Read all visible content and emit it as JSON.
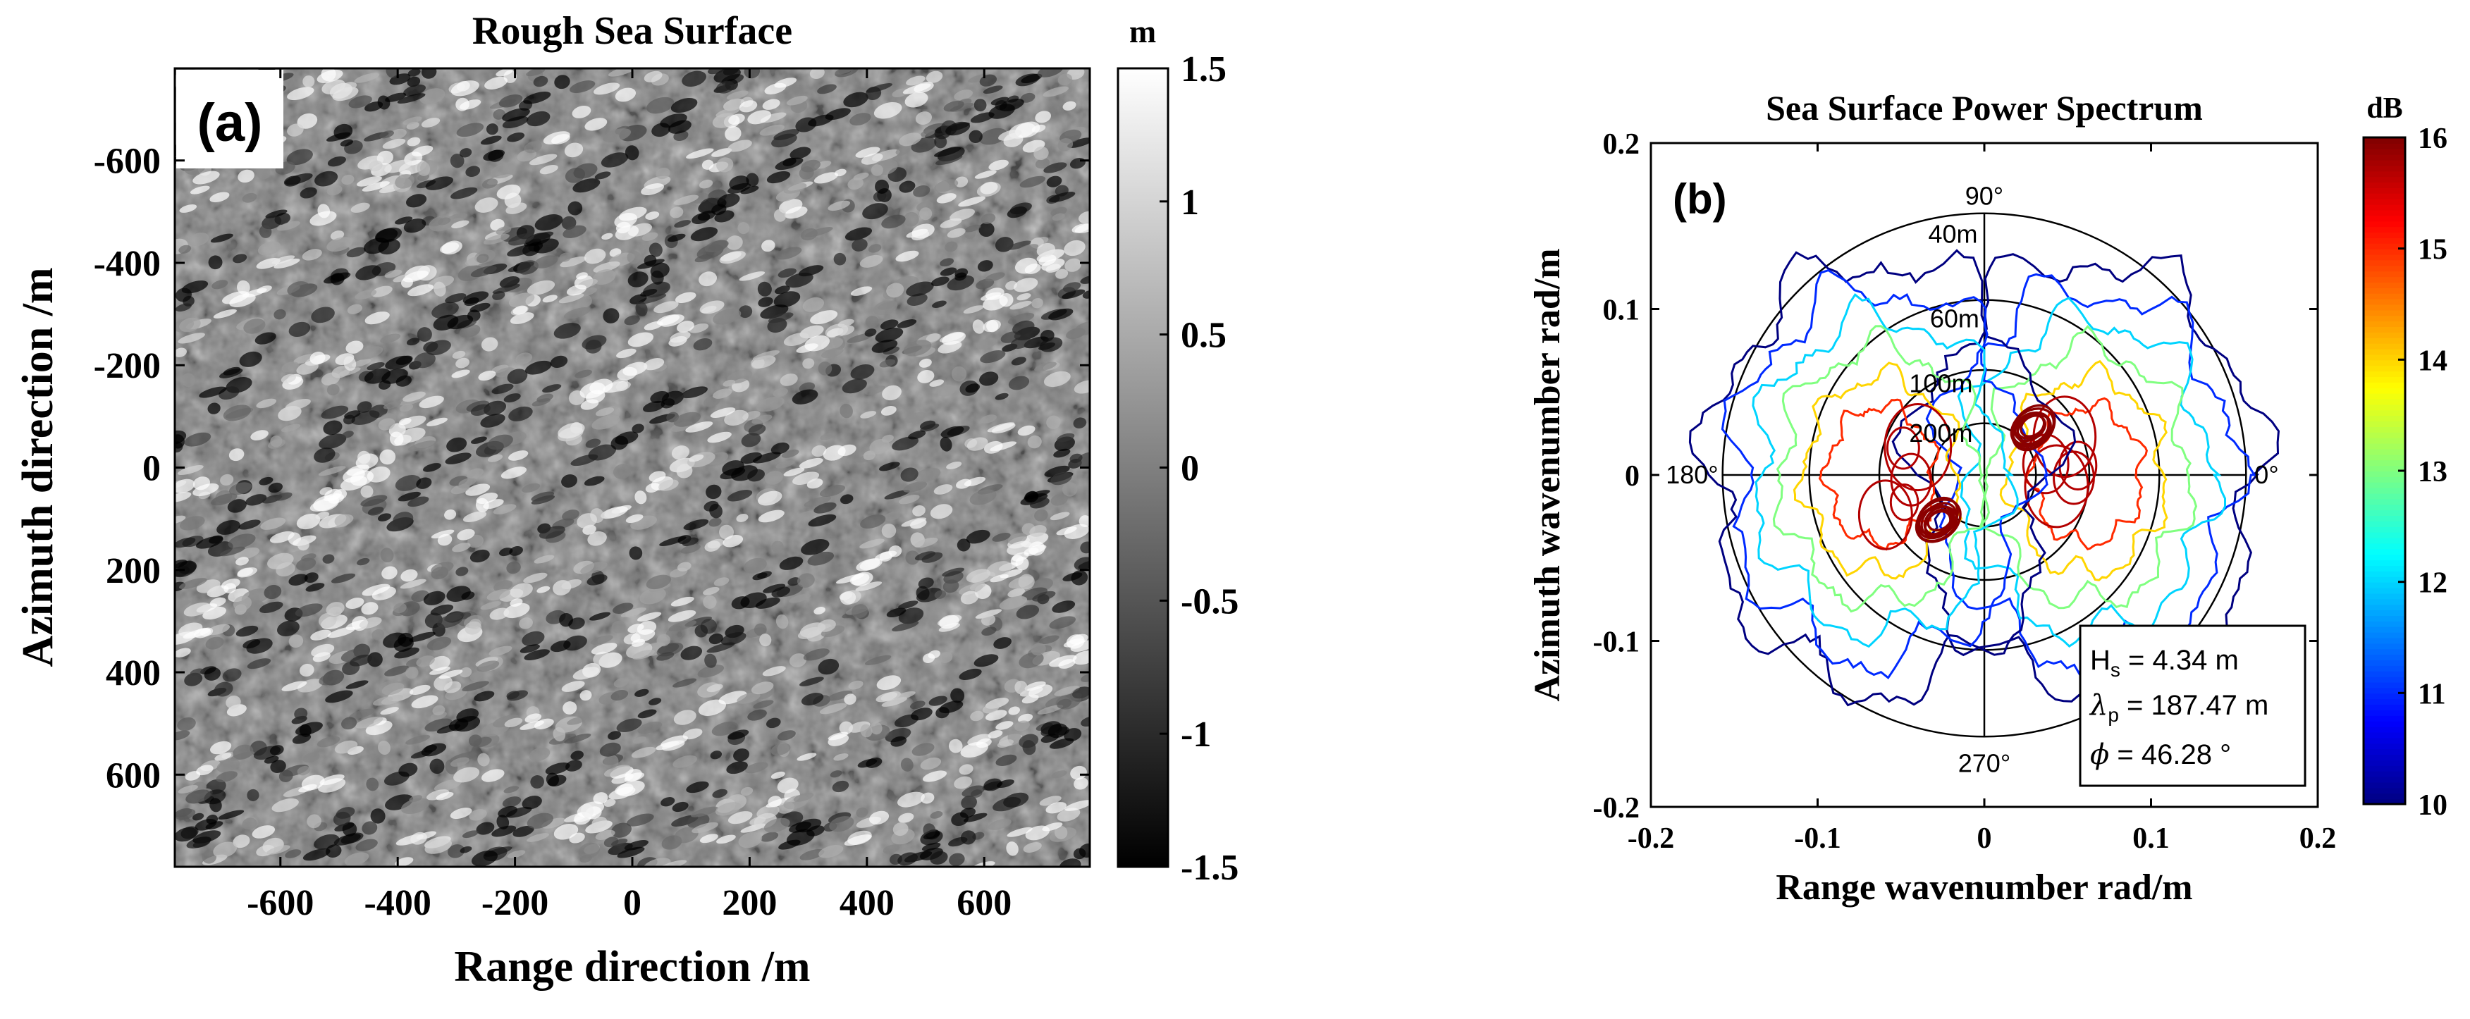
{
  "chart_data": [
    {
      "type": "heatmap",
      "title": "Rough Sea Surface",
      "panel_label": "(a)",
      "xlabel": "Range direction /m",
      "ylabel": "Azimuth direction /m",
      "xlim": [
        -780,
        780
      ],
      "ylim": [
        780,
        -780
      ],
      "xticks": [
        -600,
        -400,
        -200,
        0,
        200,
        400,
        600
      ],
      "xtick_labels": [
        "-600",
        "-400",
        "-200",
        "0",
        "200",
        "400",
        "600"
      ],
      "yticks": [
        -600,
        -400,
        -200,
        0,
        200,
        400,
        600
      ],
      "ytick_labels": [
        "-600",
        "-400",
        "-200",
        "0",
        "200",
        "400",
        "600"
      ],
      "colorbar": {
        "label": "m",
        "range": [
          -1.5,
          1.5
        ],
        "ticks": [
          1.5,
          1,
          0.5,
          0,
          -0.5,
          -1,
          -1.5
        ],
        "tick_labels": [
          "1.5",
          "1",
          "0.5",
          "0",
          "-0.5",
          "-1",
          "-1.5"
        ],
        "colormap": "gray",
        "color_low": "#000000",
        "color_high": "#ffffff"
      },
      "grid": false,
      "field": {
        "description_of_values": "surface elevation",
        "peak_direction_deg": 46.28,
        "peak_wavelength_m": 187.47
      }
    },
    {
      "type": "contour",
      "title": "Sea Surface Power Spectrum",
      "panel_label": "(b)",
      "xlabel": "Range wavenumber rad/m",
      "ylabel": "Azimuth wavenumber rad/m",
      "xlim": [
        -0.2,
        0.2
      ],
      "ylim": [
        -0.2,
        0.2
      ],
      "xticks": [
        -0.2,
        -0.1,
        0,
        0.1,
        0.2
      ],
      "xtick_labels": [
        "-0.2",
        "-0.1",
        "0",
        "0.1",
        "0.2"
      ],
      "yticks": [
        0.2,
        0.1,
        0,
        -0.1,
        -0.2
      ],
      "ytick_labels": [
        "0.2",
        "0.1",
        "0",
        "-0.1",
        "-0.2"
      ],
      "polar_grid": {
        "rings": [
          {
            "label": "40m",
            "wavelength_m": 40,
            "radius": 0.157
          },
          {
            "label": "60m",
            "wavelength_m": 60,
            "radius": 0.105
          },
          {
            "label": "100m",
            "wavelength_m": 100,
            "radius": 0.063
          },
          {
            "label": "200m",
            "wavelength_m": 200,
            "radius": 0.031
          }
        ],
        "angle_labels": [
          "90°",
          "180°",
          "0°",
          "270°"
        ]
      },
      "colorbar": {
        "label": "dB",
        "range": [
          10,
          16
        ],
        "ticks": [
          16,
          15,
          14,
          13,
          12,
          11,
          10
        ],
        "tick_labels": [
          "16",
          "15",
          "14",
          "13",
          "12",
          "11",
          "10"
        ],
        "colormap": "jet"
      },
      "contour_levels_db": [
        10,
        11,
        12,
        13,
        14,
        15,
        16
      ],
      "peaks": [
        {
          "kx": 0.028,
          "ky": 0.028,
          "level_db": 16
        },
        {
          "kx": -0.028,
          "ky": -0.028,
          "level_db": 16
        }
      ],
      "annotation": {
        "hs_prefix": "H",
        "hs_sub": "s",
        "hs_value": " = 4.34 m",
        "lp_prefix": "λ",
        "lp_sub": "p",
        "lp_value": " = 187.47 m",
        "phi_prefix": "ϕ",
        "phi_value": " = 46.28 °"
      },
      "grid": false
    }
  ]
}
